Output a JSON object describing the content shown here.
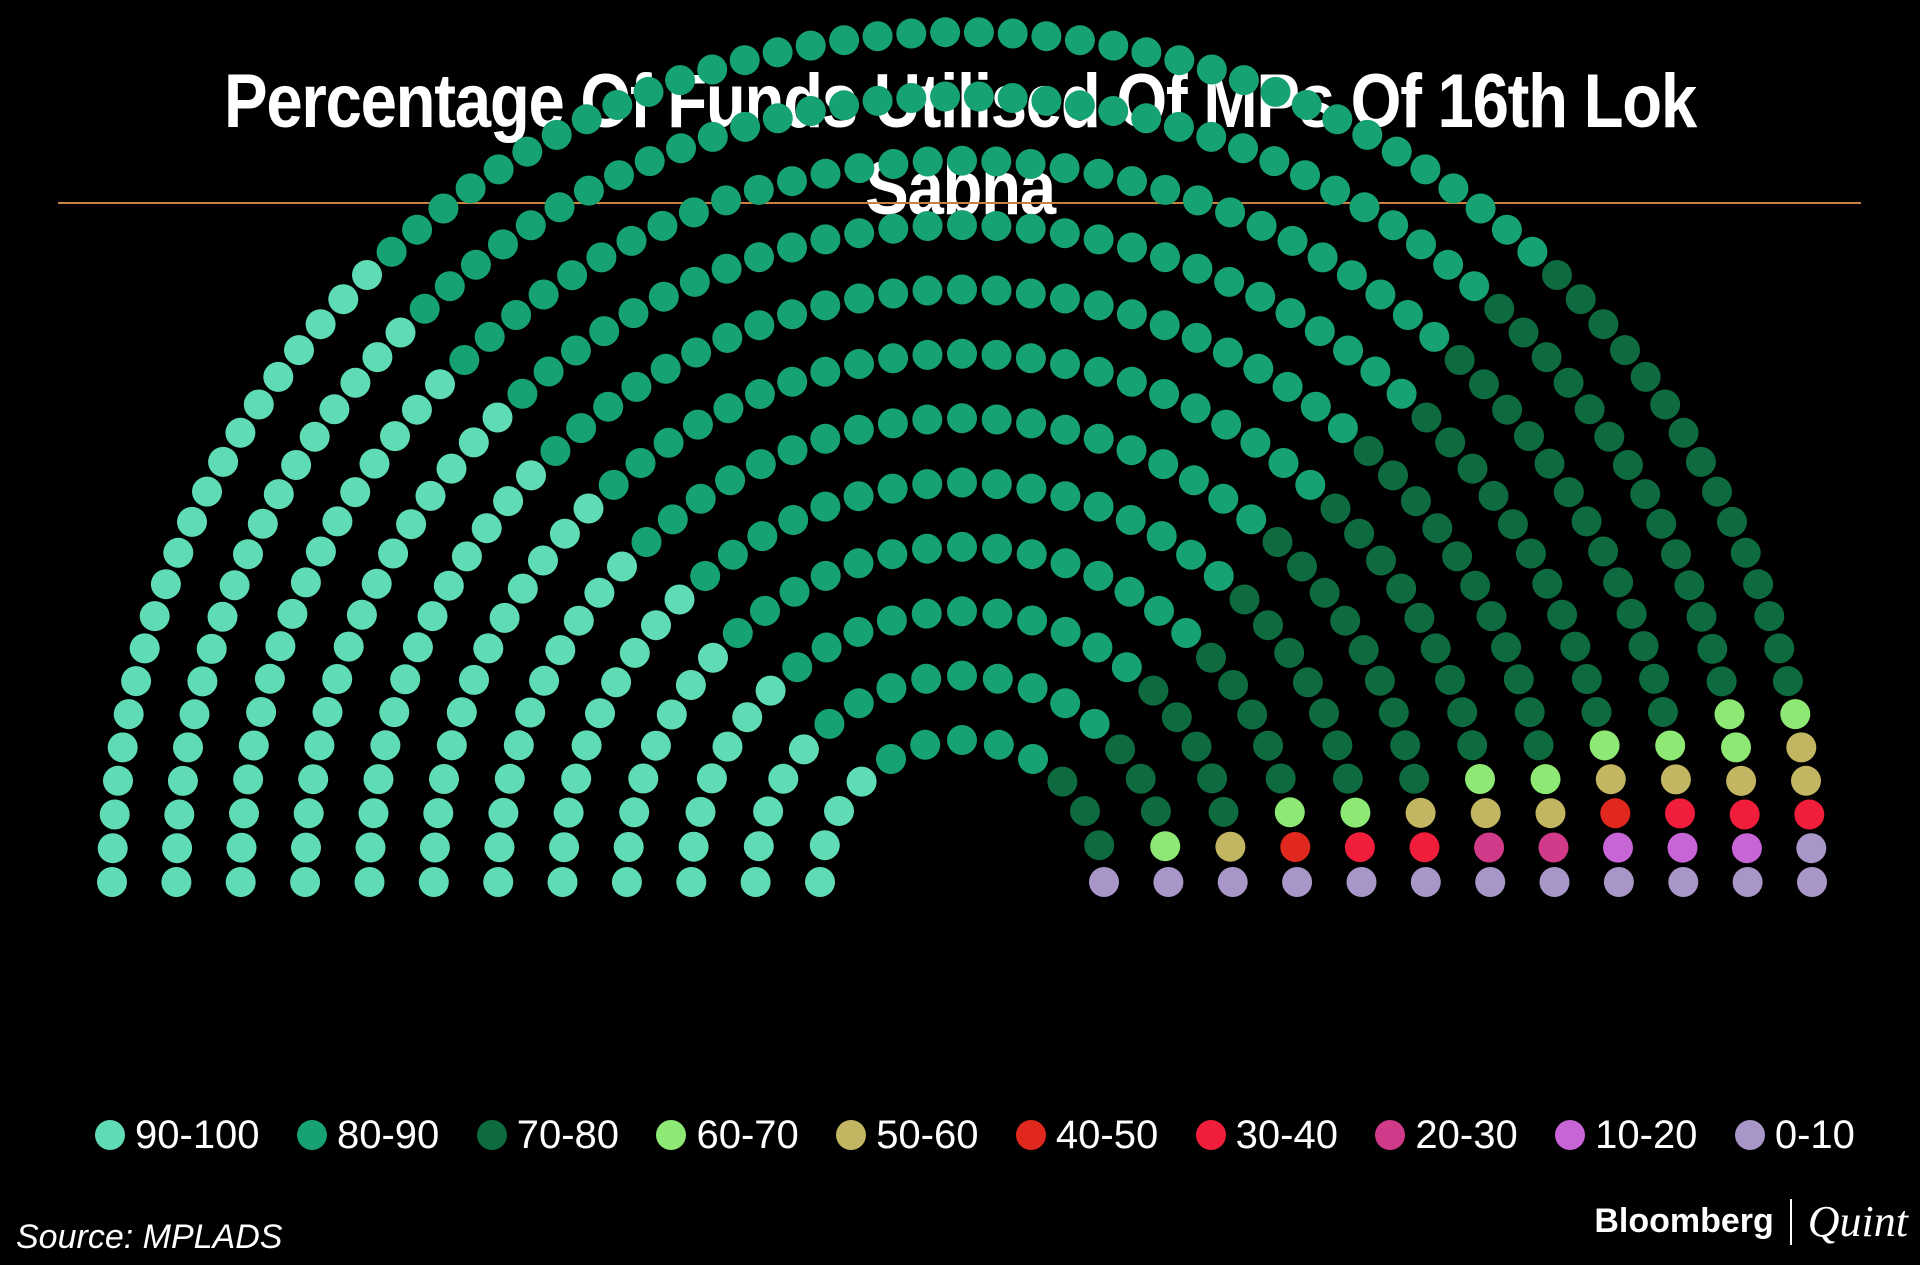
{
  "title": "Percentage Of Funds Utilised Of MPs Of 16th Lok Sabha",
  "source": "Source: MPLADS",
  "brand": {
    "primary": "Bloomberg",
    "secondary": "Quint"
  },
  "colors": {
    "background": "#000000",
    "rule": "#c8823f",
    "text": "#ffffff"
  },
  "chart_data": {
    "type": "parliament",
    "title": "Percentage Of Funds Utilised Of MPs Of 16th Lok Sabha",
    "rows": 12,
    "categories": [
      "90-100",
      "80-90",
      "70-80",
      "60-70",
      "50-60",
      "40-50",
      "30-40",
      "20-30",
      "10-20",
      "0-10"
    ],
    "colors": [
      "#5fdcb6",
      "#17a371",
      "#0e6b3f",
      "#8ee874",
      "#c2b662",
      "#e0281e",
      "#f01e3a",
      "#d03a88",
      "#c764d6",
      "#a796c7"
    ],
    "values": [
      145,
      260,
      105,
      10,
      9,
      2,
      5,
      2,
      3,
      13
    ],
    "legend_position": "bottom"
  }
}
